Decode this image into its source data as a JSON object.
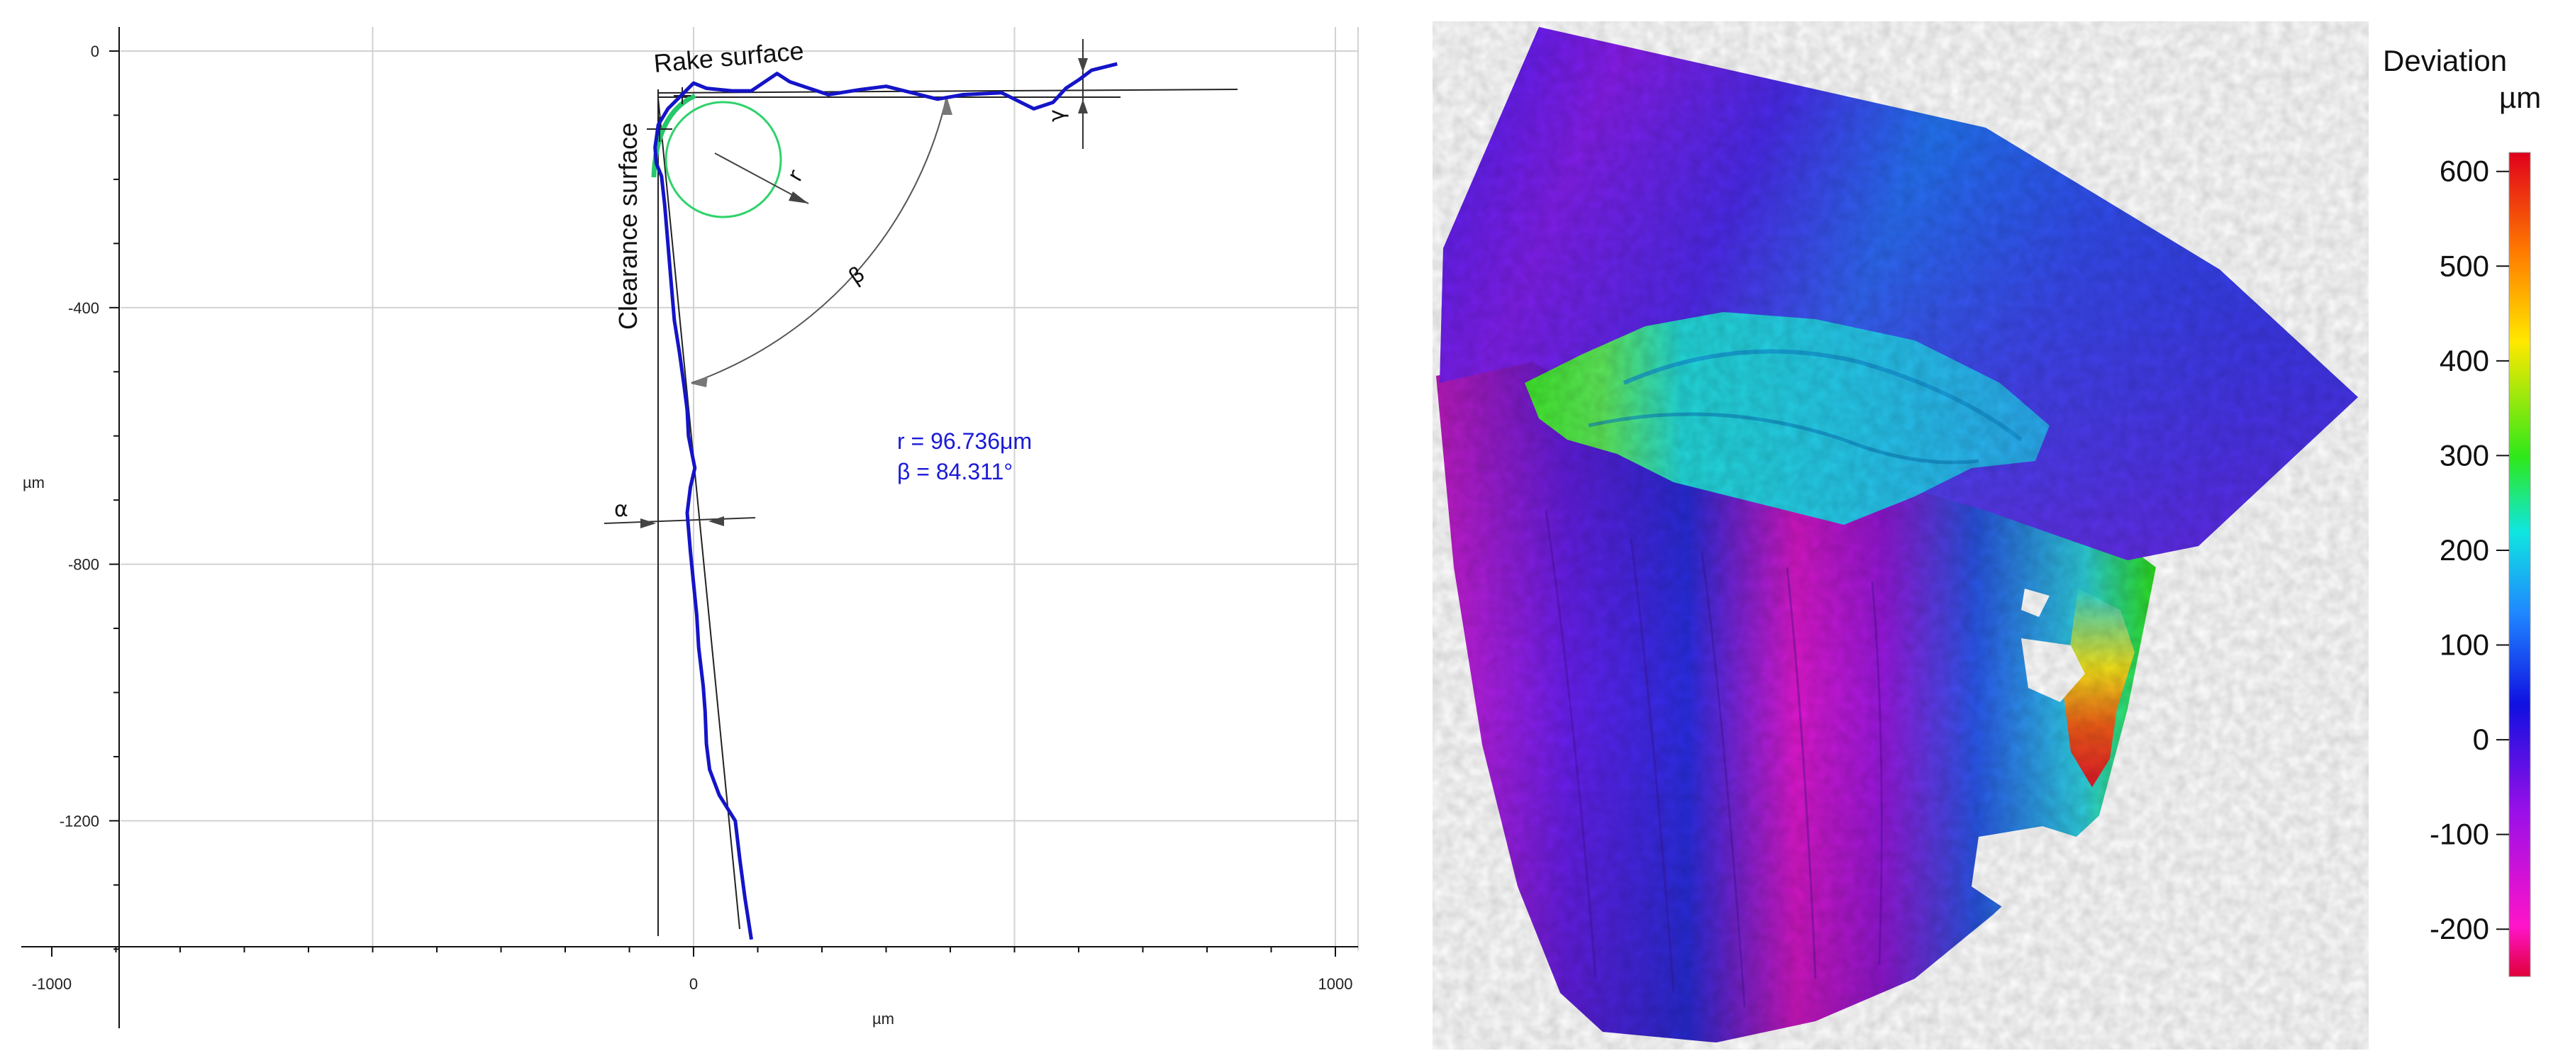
{
  "chart_data": [
    {
      "type": "line",
      "title": "",
      "xlabel": "µm",
      "ylabel": "µm",
      "xlim": [
        -1000,
        1000
      ],
      "ylim": [
        -1400,
        0
      ],
      "x_ticks": [
        -1000,
        0,
        1000
      ],
      "x_tick_labels": [
        "-1000",
        "0",
        "1000"
      ],
      "y_ticks": [
        0,
        -400,
        -800,
        -1200
      ],
      "y_tick_labels": [
        "0",
        "-400",
        "-800",
        "-1200"
      ],
      "grid": true,
      "series": [
        {
          "color": "#1414c8",
          "points": [
            [
              660,
              -20
            ],
            [
              620,
              -30
            ],
            [
              600,
              -45
            ],
            [
              580,
              -58
            ],
            [
              560,
              -80
            ],
            [
              530,
              -90
            ],
            [
              480,
              -65
            ],
            [
              420,
              -68
            ],
            [
              380,
              -75
            ],
            [
              300,
              -55
            ],
            [
              260,
              -60
            ],
            [
              210,
              -68
            ],
            [
              150,
              -48
            ],
            [
              130,
              -35
            ],
            [
              90,
              -62
            ],
            [
              60,
              -62
            ],
            [
              20,
              -58
            ],
            [
              0,
              -50
            ],
            [
              -20,
              -70
            ],
            [
              -40,
              -90
            ],
            [
              -55,
              -115
            ],
            [
              -60,
              -150
            ],
            [
              -58,
              -175
            ],
            [
              -50,
              -195
            ],
            [
              -45,
              -240
            ],
            [
              -40,
              -300
            ],
            [
              -35,
              -360
            ],
            [
              -30,
              -420
            ],
            [
              -22,
              -470
            ],
            [
              -15,
              -520
            ],
            [
              -10,
              -560
            ],
            [
              -8,
              -600
            ],
            [
              2,
              -650
            ],
            [
              -5,
              -680
            ],
            [
              -10,
              -720
            ],
            [
              -5,
              -780
            ],
            [
              0,
              -830
            ],
            [
              5,
              -880
            ],
            [
              8,
              -930
            ],
            [
              15,
              -990
            ],
            [
              18,
              -1030
            ],
            [
              20,
              -1080
            ],
            [
              25,
              -1120
            ],
            [
              40,
              -1160
            ],
            [
              65,
              -1200
            ],
            [
              72,
              -1260
            ],
            [
              80,
              -1320
            ],
            [
              90,
              -1385
            ]
          ]
        }
      ],
      "annotations": {
        "rake_surface": "Rake surface",
        "clearance_surface": "Clearance surface",
        "gamma": "γ",
        "r": "r",
        "beta": "β",
        "alpha": "α",
        "r_value": "r = 96.736μm",
        "beta_value": "β = 84.311°"
      }
    },
    {
      "type": "heatmap",
      "title": "Deviation",
      "unit": "µm",
      "range": [
        -250,
        620
      ],
      "ticks": [
        600,
        500,
        400,
        300,
        200,
        100,
        0,
        -100,
        -200
      ],
      "tick_labels": [
        "600",
        "500",
        "400",
        "300",
        "200",
        "100",
        "0",
        "-100",
        "-200"
      ],
      "colormap": [
        "#e0001c",
        "#ff7a00",
        "#ffe800",
        "#2ee81a",
        "#10e6e0",
        "#1f86ff",
        "#1010e0",
        "#9a10e8",
        "#ff14c8",
        "#e0003a"
      ]
    }
  ]
}
